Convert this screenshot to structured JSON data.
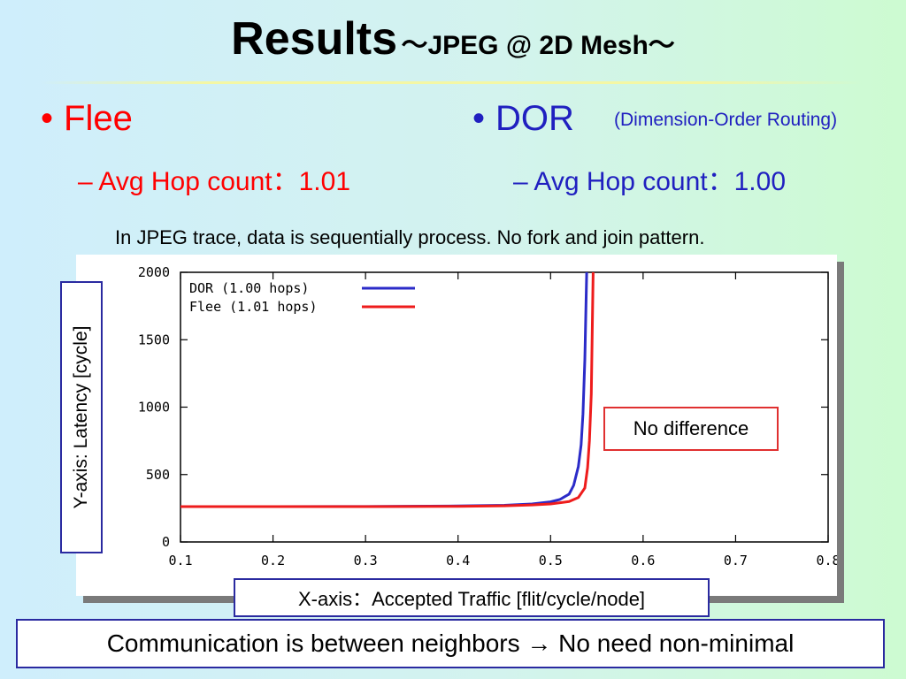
{
  "slide": {
    "title_main": "Results",
    "title_sub": "～JPEG @ 2D Mesh～",
    "flee_bullet": "Flee",
    "flee_hops": "– Avg Hop count：1.01",
    "dor_bullet": "DOR",
    "dor_note": "(Dimension-Order Routing)",
    "dor_hops": "– Avg Hop count：1.00",
    "note": "In JPEG trace, data is sequentially process. No fork and join pattern.",
    "y_axis_label": "Y-axis: Latency [cycle]",
    "x_axis_label": "X-axis：Accepted Traffic [flit/cycle/node]",
    "callout": "No difference",
    "conclusion": "Communication is between neighbors → No need non-minimal",
    "bullet_glyph": "•"
  },
  "chart_data": {
    "type": "line",
    "xlim": [
      0.1,
      0.8
    ],
    "ylim": [
      0,
      2000
    ],
    "xticks": [
      "0.1",
      "0.2",
      "0.3",
      "0.4",
      "0.5",
      "0.6",
      "0.7",
      "0.8"
    ],
    "yticks": [
      "0",
      "500",
      "1000",
      "1500",
      "2000"
    ],
    "legend_position": "top-left",
    "series": [
      {
        "name": "DOR (1.00 hops)",
        "color": "#2b2bc8",
        "points": [
          [
            0.1,
            262
          ],
          [
            0.2,
            262
          ],
          [
            0.3,
            263
          ],
          [
            0.4,
            267
          ],
          [
            0.45,
            272
          ],
          [
            0.48,
            282
          ],
          [
            0.5,
            298
          ],
          [
            0.51,
            315
          ],
          [
            0.52,
            355
          ],
          [
            0.525,
            420
          ],
          [
            0.53,
            560
          ],
          [
            0.533,
            720
          ],
          [
            0.535,
            950
          ],
          [
            0.537,
            1350
          ],
          [
            0.539,
            2000
          ]
        ]
      },
      {
        "name": "Flee (1.01 hops)",
        "color": "#ee1c1c",
        "points": [
          [
            0.1,
            262
          ],
          [
            0.2,
            262
          ],
          [
            0.3,
            262
          ],
          [
            0.4,
            264
          ],
          [
            0.45,
            268
          ],
          [
            0.48,
            275
          ],
          [
            0.5,
            282
          ],
          [
            0.52,
            300
          ],
          [
            0.53,
            330
          ],
          [
            0.537,
            400
          ],
          [
            0.54,
            550
          ],
          [
            0.542,
            750
          ],
          [
            0.544,
            1100
          ],
          [
            0.546,
            2000
          ]
        ]
      }
    ]
  }
}
